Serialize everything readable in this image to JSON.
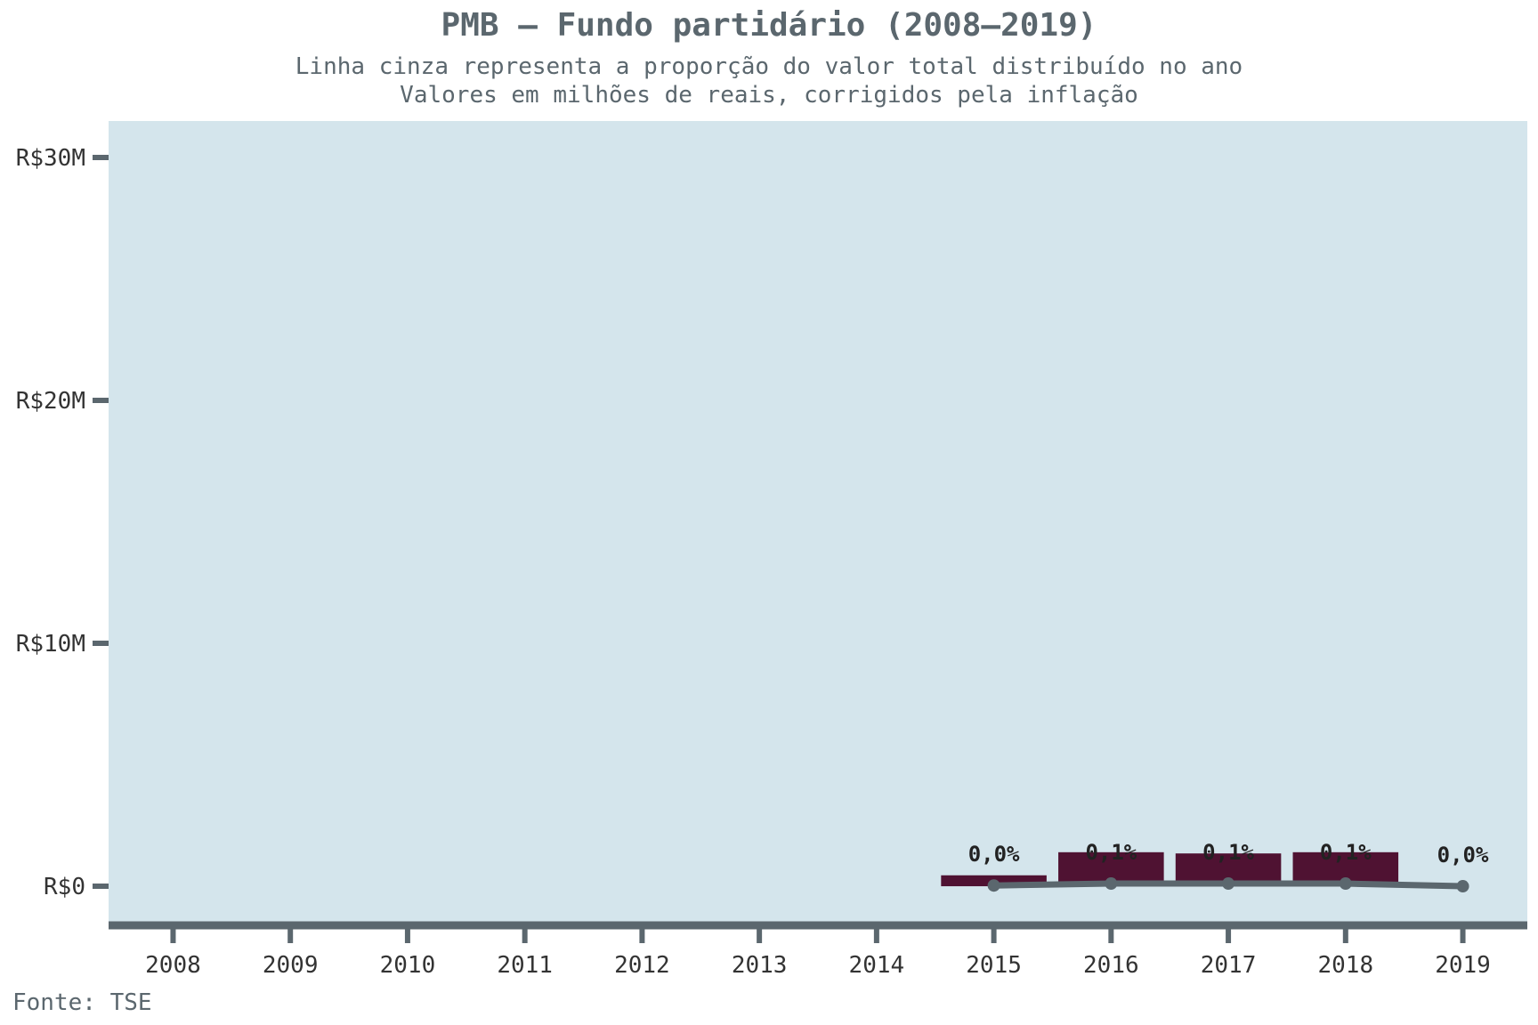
{
  "chart_data": {
    "type": "bar",
    "title": "PMB – Fundo partidário (2008–2019)",
    "subtitle": [
      "Linha cinza representa a proporção do valor total distribuído no ano",
      "Valores em milhões de reais, corrigidos pela inflação"
    ],
    "caption": "Fonte: TSE",
    "categories": [
      "2008",
      "2009",
      "2010",
      "2011",
      "2012",
      "2013",
      "2014",
      "2015",
      "2016",
      "2017",
      "2018",
      "2019"
    ],
    "values": [
      0,
      0,
      0,
      0,
      0,
      0,
      0,
      0.45,
      1.4,
      1.35,
      1.4,
      0
    ],
    "unit": "R$ milhões",
    "share_line": {
      "values": [
        null,
        null,
        null,
        null,
        null,
        null,
        null,
        0.03,
        0.11,
        0.11,
        0.11,
        0.0
      ],
      "labels": [
        null,
        null,
        null,
        null,
        null,
        null,
        null,
        "0,0%",
        "0,1%",
        "0,1%",
        "0,1%",
        "0,0%"
      ]
    },
    "yticks": [
      0,
      10,
      20,
      30
    ],
    "ytick_labels": [
      "R$0",
      "R$10M",
      "R$20M",
      "R$30M"
    ],
    "ylim": [
      -1.5,
      31.5
    ],
    "grid": false,
    "colors": {
      "bar": "#4f1232",
      "line": "#5b676e",
      "panel": "#d4e5ec",
      "axis": "#5b676e",
      "title": "#5b676e",
      "tick_text": "#333333",
      "label_text": "#222222"
    }
  }
}
